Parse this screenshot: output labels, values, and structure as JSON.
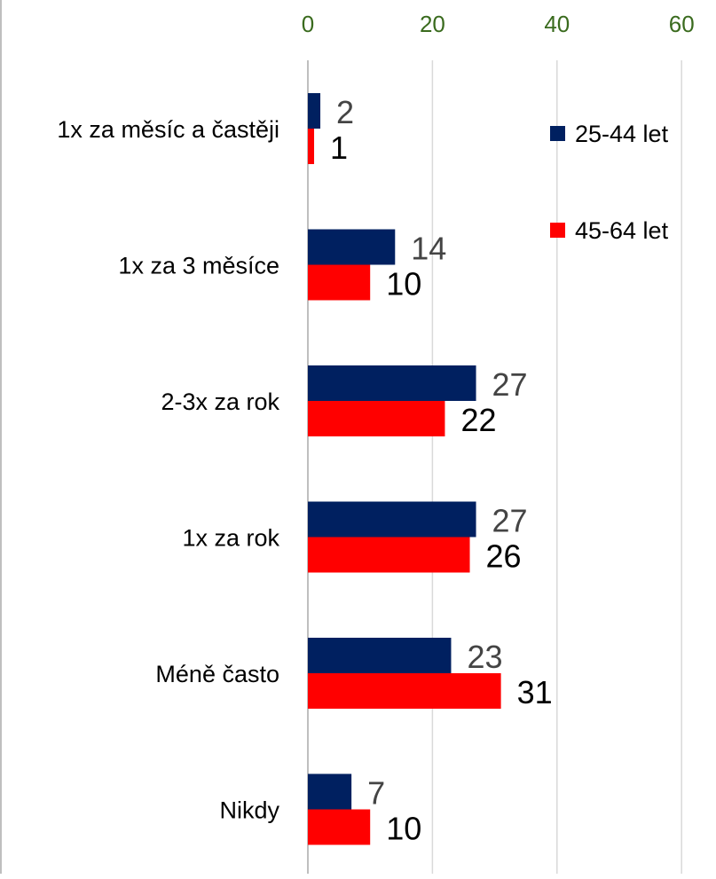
{
  "chart_data": {
    "type": "bar",
    "orientation": "horizontal",
    "categories": [
      "1x za měsíc a častěji",
      "1x za 3 měsíce",
      "2-3x za rok",
      "1x za rok",
      "Méně často",
      "Nikdy"
    ],
    "series": [
      {
        "name": "25-44 let",
        "color": "#002060",
        "values": [
          2,
          14,
          27,
          27,
          23,
          7
        ]
      },
      {
        "name": "45-64 let",
        "color": "#ff0000",
        "values": [
          1,
          10,
          22,
          26,
          31,
          10
        ]
      }
    ],
    "xlim": [
      0,
      60
    ],
    "xticks": [
      0,
      20,
      40,
      60
    ],
    "x_axis_position": "top",
    "grid": true,
    "legend": "top-right",
    "title": "",
    "xlabel": "",
    "ylabel": ""
  }
}
